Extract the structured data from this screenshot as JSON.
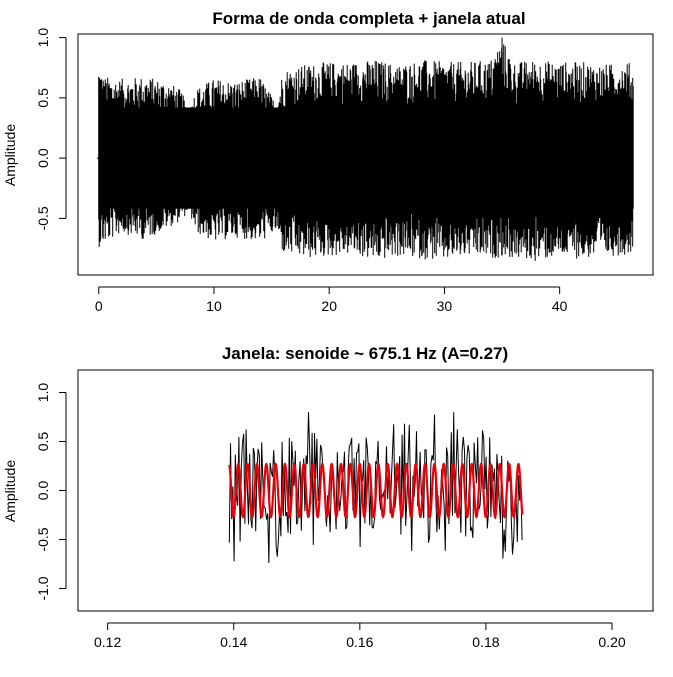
{
  "chart_data": [
    {
      "type": "line",
      "title": "Forma de onda completa + janela atual",
      "xlabel": "",
      "ylabel": "Amplitude",
      "xlim": [
        -1.8,
        48.1
      ],
      "ylim": [
        -0.97,
        1.03
      ],
      "x_ticks": [
        0,
        10,
        20,
        30,
        40
      ],
      "y_ticks": [
        -0.5,
        0.0,
        0.5,
        1.0
      ],
      "x_tick_labels": [
        "0",
        "10",
        "20",
        "30",
        "40"
      ],
      "y_tick_labels": [
        "-0.5",
        "0.0",
        "0.5",
        "1.0"
      ],
      "grid": false,
      "series": [
        {
          "color": "#000000",
          "x_range": [
            0,
            46.4
          ],
          "envelope": [
            {
              "x": 0.0,
              "min": -0.74,
              "max": 0.8
            },
            {
              "x": 0.4,
              "min": -0.72,
              "max": 0.68
            },
            {
              "x": 2.0,
              "min": -0.62,
              "max": 0.66
            },
            {
              "x": 4.0,
              "min": -0.68,
              "max": 0.68
            },
            {
              "x": 6.0,
              "min": -0.58,
              "max": 0.64
            },
            {
              "x": 7.2,
              "min": -0.52,
              "max": 0.56
            },
            {
              "x": 7.8,
              "min": -0.44,
              "max": 0.38
            },
            {
              "x": 8.4,
              "min": -0.62,
              "max": 0.58
            },
            {
              "x": 10.0,
              "min": -0.7,
              "max": 0.66
            },
            {
              "x": 12.0,
              "min": -0.66,
              "max": 0.64
            },
            {
              "x": 14.0,
              "min": -0.7,
              "max": 0.68
            },
            {
              "x": 15.4,
              "min": -0.62,
              "max": 0.46
            },
            {
              "x": 16.0,
              "min": -0.8,
              "max": 0.74
            },
            {
              "x": 18.0,
              "min": -0.84,
              "max": 0.78
            },
            {
              "x": 20.0,
              "min": -0.82,
              "max": 0.8
            },
            {
              "x": 22.0,
              "min": -0.8,
              "max": 0.8
            },
            {
              "x": 24.0,
              "min": -0.86,
              "max": 0.82
            },
            {
              "x": 26.0,
              "min": -0.82,
              "max": 0.78
            },
            {
              "x": 28.0,
              "min": -0.84,
              "max": 0.82
            },
            {
              "x": 30.0,
              "min": -0.86,
              "max": 0.8
            },
            {
              "x": 32.0,
              "min": -0.82,
              "max": 0.8
            },
            {
              "x": 34.0,
              "min": -0.84,
              "max": 0.82
            },
            {
              "x": 35.0,
              "min": -0.82,
              "max": 1.0
            },
            {
              "x": 36.0,
              "min": -0.84,
              "max": 0.8
            },
            {
              "x": 38.0,
              "min": -0.86,
              "max": 0.82
            },
            {
              "x": 40.0,
              "min": -0.82,
              "max": 0.8
            },
            {
              "x": 42.0,
              "min": -0.84,
              "max": 0.8
            },
            {
              "x": 44.0,
              "min": -0.82,
              "max": 0.78
            },
            {
              "x": 46.0,
              "min": -0.8,
              "max": 0.8
            },
            {
              "x": 46.4,
              "min": -0.76,
              "max": 0.74
            }
          ]
        }
      ]
    },
    {
      "type": "line",
      "title": "Janela: senoide ~ 675.1 Hz (A=0.27)",
      "xlabel": "",
      "ylabel": "Amplitude",
      "xlim": [
        0.1153,
        0.2065
      ],
      "ylim": [
        -1.23,
        1.23
      ],
      "x_ticks": [
        0.12,
        0.14,
        0.16,
        0.18,
        0.2
      ],
      "y_ticks": [
        -1.0,
        -0.5,
        0.0,
        0.5,
        1.0
      ],
      "x_tick_labels": [
        "0.12",
        "0.14",
        "0.16",
        "0.18",
        "0.20"
      ],
      "y_tick_labels": [
        "-1.0",
        "-0.5",
        "0.0",
        "0.5",
        "1.0"
      ],
      "grid": false,
      "series": [
        {
          "color": "#000000",
          "x_range": [
            0.1393,
            0.1858
          ],
          "amplitude_range": [
            -0.74,
            0.8
          ]
        },
        {
          "color": "#e8000b",
          "x_range": [
            0.1393,
            0.1858
          ],
          "frequency_hz": 675.1,
          "amplitude": 0.27
        }
      ]
    }
  ]
}
